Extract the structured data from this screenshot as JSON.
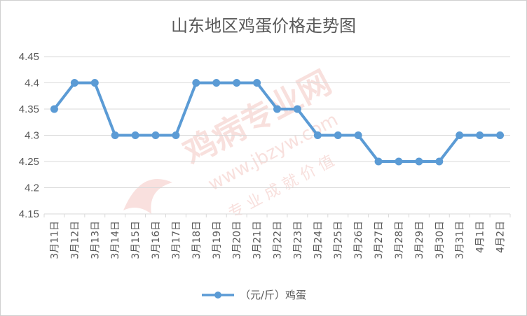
{
  "chart_data": {
    "type": "line",
    "title": "山东地区鸡蛋价格走势图",
    "categories": [
      "3月11日",
      "3月12日",
      "3月13日",
      "3月14日",
      "3月15日",
      "3月16日",
      "3月17日",
      "3月18日",
      "3月19日",
      "3月20日",
      "3月21日",
      "3月22日",
      "3月23日",
      "3月24日",
      "3月25日",
      "3月26日",
      "3月27日",
      "3月28日",
      "3月29日",
      "3月30日",
      "3月31日",
      "4月1日",
      "4月2日"
    ],
    "series": [
      {
        "name": "（元/斤）鸡蛋",
        "values": [
          4.35,
          4.4,
          4.4,
          4.3,
          4.3,
          4.3,
          4.3,
          4.4,
          4.4,
          4.4,
          4.4,
          4.35,
          4.35,
          4.3,
          4.3,
          4.3,
          4.25,
          4.25,
          4.25,
          4.25,
          4.3,
          4.3,
          4.3
        ]
      }
    ],
    "ylim": [
      4.15,
      4.45
    ],
    "yticks": [
      "4.15",
      "4.2",
      "4.25",
      "4.3",
      "4.35",
      "4.4",
      "4.45"
    ],
    "xlabel": "",
    "ylabel": "",
    "grid": true,
    "legend": "bottom",
    "colors": {
      "line": "#5B9BD5",
      "grid": "#d9d9d9",
      "text": "#595959",
      "watermark": "#f4c7c3"
    }
  },
  "watermark": {
    "main": "鸡病专业网",
    "url": "www.jbzyw.com",
    "slogan": "专 业 成 就 价 值"
  }
}
